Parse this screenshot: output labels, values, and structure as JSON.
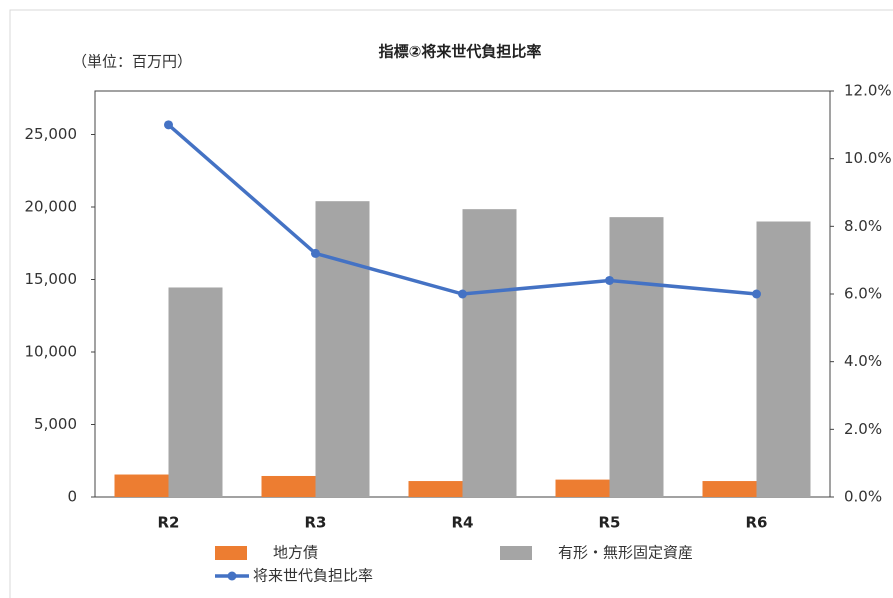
{
  "chart_data": {
    "type": "bar_line",
    "title": "指標②将来世代負担比率",
    "unit_label": "（単位：百万円）",
    "categories": [
      "R2",
      "R3",
      "R4",
      "R5",
      "R6"
    ],
    "series": [
      {
        "name": "地方債",
        "type": "bar",
        "color": "#ed7d31",
        "values": [
          1550,
          1450,
          1100,
          1200,
          1100
        ]
      },
      {
        "name": "有形・無形固定資産",
        "type": "bar",
        "color": "#a5a5a5",
        "values": [
          14450,
          20400,
          19850,
          19300,
          19000
        ]
      },
      {
        "name": "将来世代負担比率",
        "type": "line",
        "axis": "y2",
        "color": "#4472c4",
        "values": [
          11.0,
          7.2,
          6.0,
          6.4,
          6.0
        ]
      }
    ],
    "ylim": [
      0,
      28000
    ],
    "yticks": [
      0,
      {
        "value": 5000,
        "label": "5,000"
      },
      {
        "value": 10000,
        "label": "10,000"
      },
      {
        "value": 15000,
        "label": "15,000"
      },
      {
        "value": 20000,
        "label": "20,000"
      },
      {
        "value": 25000,
        "label": "25,000"
      }
    ],
    "y2lim": [
      0,
      12
    ],
    "y2ticks": [
      {
        "value": 0,
        "label": "0.0%"
      },
      {
        "value": 2,
        "label": "2.0%"
      },
      {
        "value": 4,
        "label": "4.0%"
      },
      {
        "value": 6,
        "label": "6.0%"
      },
      {
        "value": 8,
        "label": "8.0%"
      },
      {
        "value": 10,
        "label": "10.0%"
      },
      {
        "value": 12,
        "label": "12.0%"
      }
    ],
    "grid": false
  }
}
